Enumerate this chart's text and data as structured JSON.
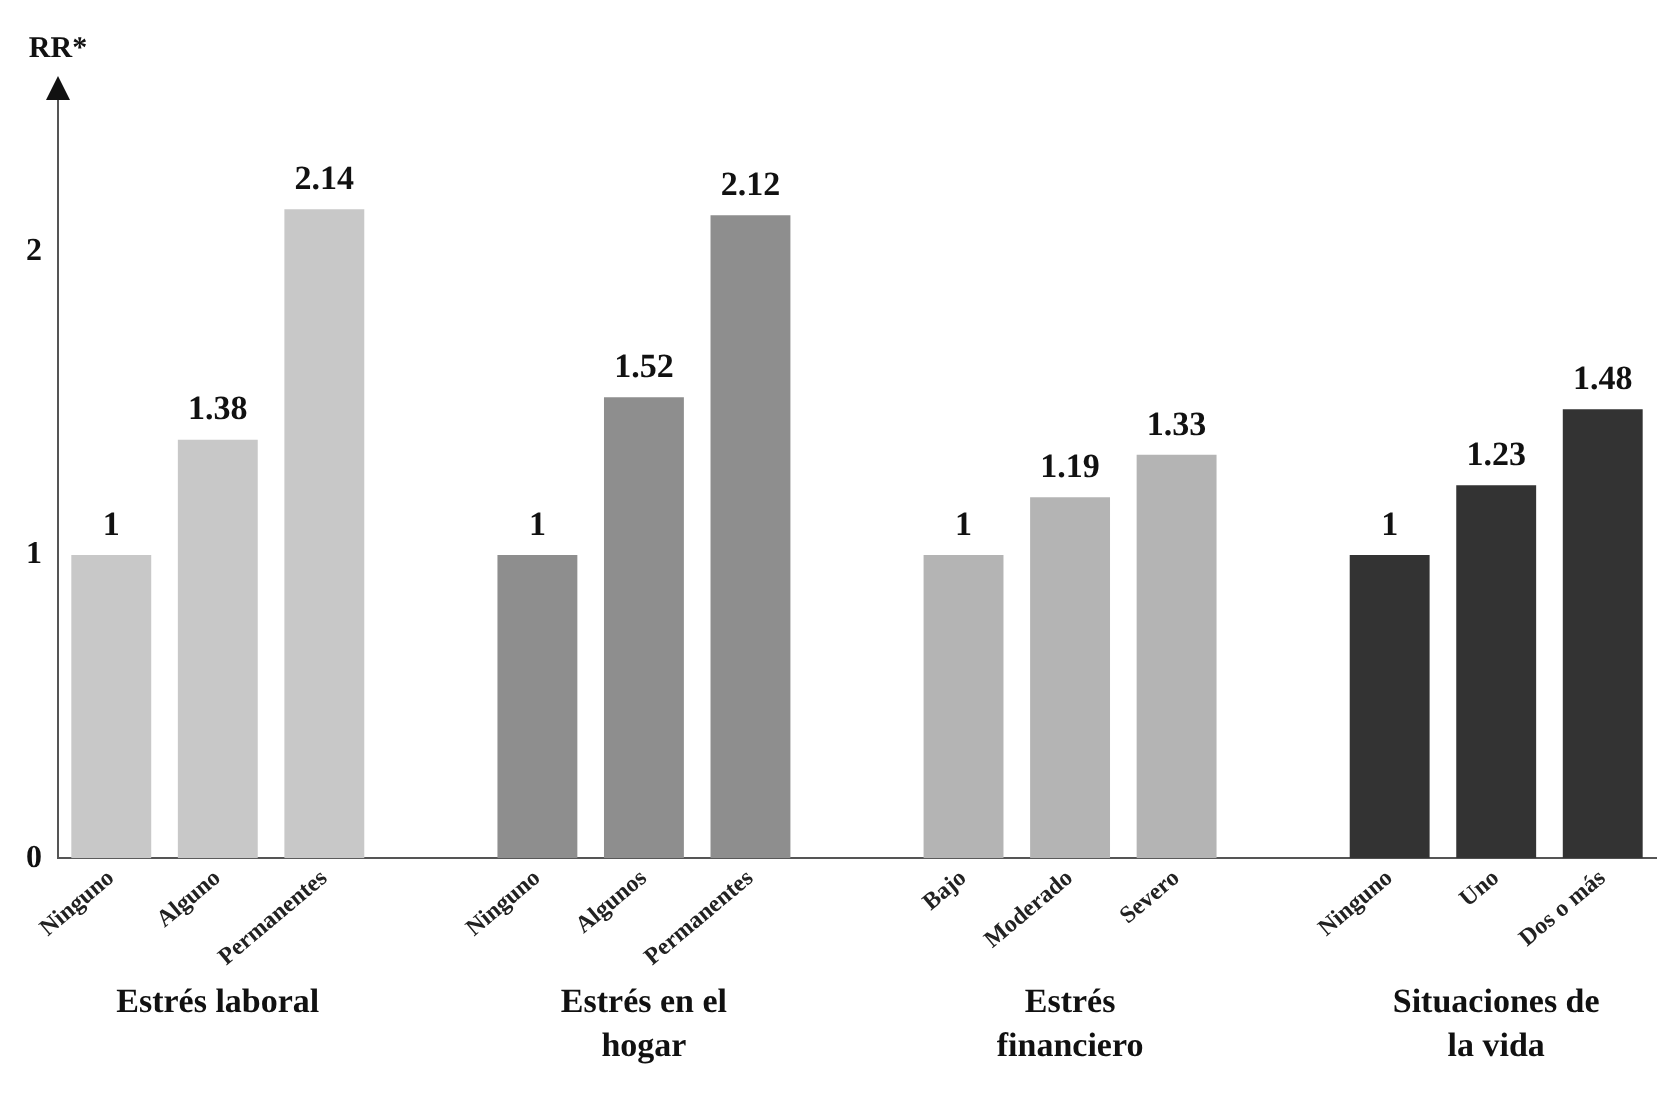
{
  "chart_data": {
    "type": "bar",
    "ylabel": "RR*",
    "categories": [
      "Ninguno",
      "Alguno",
      "Permanentes",
      null,
      "Ninguno",
      "Algunos",
      "Permanentes",
      null,
      "Bajo",
      "Moderado",
      "Severo",
      null,
      "Ninguno",
      "Uno",
      "Dos o más"
    ],
    "values": [
      1,
      1.38,
      2.14,
      null,
      1,
      1.52,
      2.12,
      null,
      1,
      1.19,
      1.33,
      null,
      1,
      1.23,
      1.48
    ],
    "colors": [
      "#c8c8c8",
      "#c8c8c8",
      "#c8c8c8",
      null,
      "#8e8e8e",
      "#8e8e8e",
      "#8e8e8e",
      null,
      "#b4b4b4",
      "#b4b4b4",
      "#b4b4b4",
      null,
      "#333333",
      "#333333",
      "#333333"
    ],
    "ylim": [
      0,
      2.5
    ],
    "yticks": [
      0,
      1,
      2
    ],
    "grid": false,
    "legend": false,
    "data_labels": true,
    "annotations": [
      "Estrés laboral",
      "Estrés en el hogar",
      "Estrés financiero",
      "Situaciones de la vida"
    ]
  }
}
